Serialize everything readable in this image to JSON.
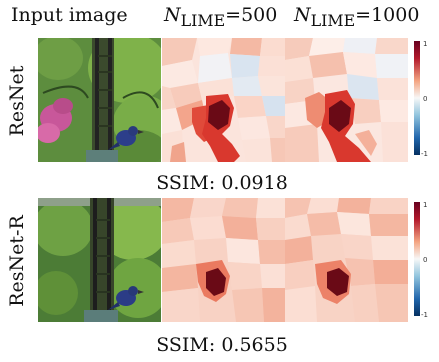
{
  "header": {
    "input_label": "Input image",
    "lime_symbol": "N",
    "lime_subscript": "LIME",
    "lime_values": [
      "=500",
      "=1000"
    ]
  },
  "rows": [
    {
      "label": "ResNet",
      "ssim_prefix": "SSIM:",
      "ssim_value": "0.0918"
    },
    {
      "label": "ResNet-R",
      "ssim_prefix": "SSIM:",
      "ssim_value": "0.5655"
    }
  ],
  "colorbar": {
    "ticks": [
      "1",
      "0",
      "-1"
    ],
    "colors": {
      "pos": "#b2182b",
      "mid": "#f7f7f7",
      "neg": "#2166ac"
    }
  }
}
